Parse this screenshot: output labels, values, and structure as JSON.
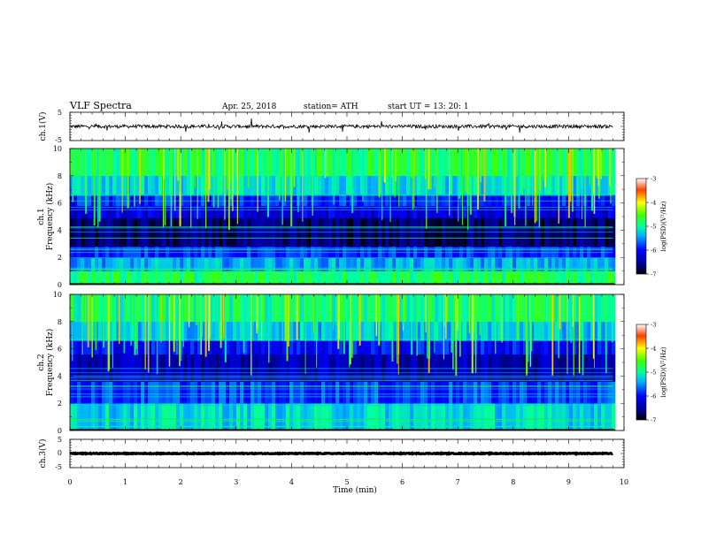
{
  "header": {
    "title": "VLF  Spectra",
    "date": "Apr. 25, 2018",
    "station": "station= ATH",
    "start_ut": "start  UT  =    13: 20: 1"
  },
  "chart_data": [
    {
      "type": "line",
      "panel": "ch1-waveform",
      "ylabel": "ch.1(V)",
      "ylim": [
        -5,
        5
      ],
      "yticks": [
        "5",
        "-5"
      ],
      "xlim": [
        0,
        10
      ],
      "series": [
        {
          "x_start": 0,
          "x_end": 9.8,
          "baseline": 0,
          "noise_amplitude": 0.6,
          "color": "#000000"
        }
      ]
    },
    {
      "type": "heatmap",
      "panel": "ch1-spectrogram",
      "ylabel": "ch.1\nFrequency  (kHz)",
      "ylabel_line1": "ch.1",
      "ylabel_line2": "Frequency  (kHz)",
      "ylim": [
        0,
        10
      ],
      "yticks": [
        "0",
        "2",
        "4",
        "6",
        "8",
        "10"
      ],
      "xlim": [
        0,
        10
      ],
      "x_extent": [
        0,
        9.8
      ],
      "colorbar": {
        "label": "log(PSD)(V²/Hz)",
        "range": [
          -7,
          -3
        ],
        "ticks": [
          "-3",
          "-4",
          "-5",
          "-6",
          "-7"
        ]
      },
      "bands": [
        {
          "from": 0.0,
          "to": 0.1,
          "level": -7.0
        },
        {
          "from": 0.1,
          "to": 1.0,
          "level": -4.8
        },
        {
          "from": 1.0,
          "to": 2.0,
          "level": -5.4
        },
        {
          "from": 2.0,
          "to": 2.8,
          "level": -5.9
        },
        {
          "from": 2.8,
          "to": 4.9,
          "level": -6.7
        },
        {
          "from": 4.9,
          "to": 5.8,
          "level": -6.2
        },
        {
          "from": 5.8,
          "to": 6.6,
          "level": -5.9
        },
        {
          "from": 6.6,
          "to": 8.0,
          "level": -5.2
        },
        {
          "from": 8.0,
          "to": 10.0,
          "level": -4.8
        }
      ]
    },
    {
      "type": "heatmap",
      "panel": "ch2-spectrogram",
      "ylabel": "ch.2\nFrequency  (kHz)",
      "ylabel_line1": "ch.2",
      "ylabel_line2": "Frequency  (kHz)",
      "ylim": [
        0,
        10
      ],
      "yticks": [
        "0",
        "2",
        "4",
        "6",
        "8",
        "10"
      ],
      "xlim": [
        0,
        10
      ],
      "x_extent": [
        0,
        9.8
      ],
      "colorbar": {
        "label": "log(PSD)(V²/Hz)",
        "range": [
          -7,
          -3
        ],
        "ticks": [
          "-3",
          "-4",
          "-5",
          "-6",
          "-7"
        ]
      },
      "bands": [
        {
          "from": 0.0,
          "to": 0.1,
          "level": -7.0
        },
        {
          "from": 0.1,
          "to": 2.0,
          "level": -5.2
        },
        {
          "from": 2.0,
          "to": 3.6,
          "level": -5.8
        },
        {
          "from": 3.6,
          "to": 5.6,
          "level": -6.4
        },
        {
          "from": 5.6,
          "to": 6.6,
          "level": -6.0
        },
        {
          "from": 6.6,
          "to": 8.0,
          "level": -5.3
        },
        {
          "from": 8.0,
          "to": 10.0,
          "level": -4.9
        }
      ]
    },
    {
      "type": "line",
      "panel": "ch3-waveform",
      "ylabel": "ch.3(V)",
      "ylim": [
        -5,
        5
      ],
      "yticks": [
        "5",
        "0",
        "-5"
      ],
      "xlim": [
        0,
        10
      ],
      "series": [
        {
          "x_start": 0,
          "x_end": 9.8,
          "baseline": 0,
          "noise_amplitude": 0.15,
          "color": "#000000"
        }
      ]
    }
  ],
  "x_axis": {
    "label": "Time  (min)",
    "ticks": [
      "0",
      "1",
      "2",
      "3",
      "4",
      "5",
      "6",
      "7",
      "8",
      "9",
      "10"
    ]
  }
}
